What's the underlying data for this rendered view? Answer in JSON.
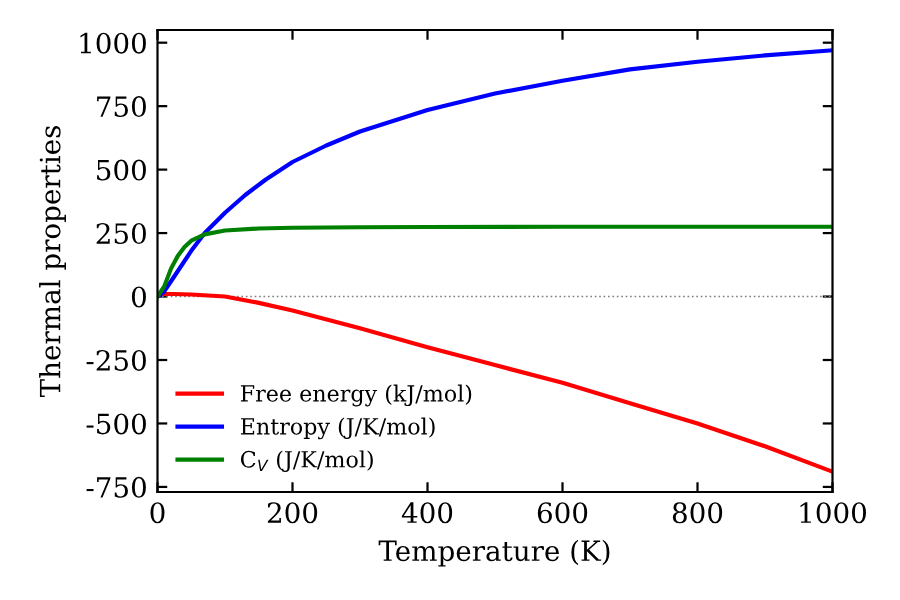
{
  "chart_data": {
    "type": "line",
    "xlabel": "Temperature (K)",
    "ylabel": "Thermal properties",
    "xlim": [
      0,
      1000
    ],
    "ylim": [
      -770,
      1050
    ],
    "xticks": [
      0,
      200,
      400,
      600,
      800,
      1000
    ],
    "yticks": [
      -750,
      -500,
      -250,
      0,
      250,
      500,
      750,
      1000
    ],
    "grid": false,
    "legend": "bottom left",
    "marker": "none",
    "line_style": "solid",
    "ref_lines": [
      {
        "axis": "y",
        "value": 0,
        "label": null,
        "color": "#808080",
        "line_style": "dotted"
      }
    ],
    "series": [
      {
        "name": "Free energy (kJ/mol)",
        "color": "#ff0000",
        "x": [
          0,
          25,
          50,
          100,
          150,
          200,
          300,
          400,
          500,
          600,
          700,
          800,
          900,
          1000
        ],
        "values": [
          10,
          10,
          8,
          0,
          -25,
          -55,
          -125,
          -200,
          -270,
          -340,
          -420,
          -500,
          -590,
          -690
        ]
      },
      {
        "name": "Entropy (J/K/mol)",
        "color": "#0000ff",
        "x": [
          0,
          10,
          25,
          50,
          70,
          100,
          130,
          160,
          200,
          250,
          300,
          400,
          500,
          600,
          700,
          800,
          900,
          1000
        ],
        "values": [
          0,
          20,
          80,
          180,
          250,
          330,
          400,
          460,
          530,
          595,
          650,
          735,
          800,
          850,
          895,
          925,
          950,
          970
        ]
      },
      {
        "name": "C$_{V}$ (J/K/mol)",
        "color": "#008000",
        "x": [
          0,
          10,
          20,
          30,
          40,
          50,
          70,
          100,
          150,
          200,
          300,
          400,
          600,
          800,
          1000
        ],
        "values": [
          0,
          40,
          110,
          160,
          195,
          220,
          245,
          260,
          268,
          271,
          273,
          274,
          275,
          275,
          275
        ]
      }
    ]
  }
}
